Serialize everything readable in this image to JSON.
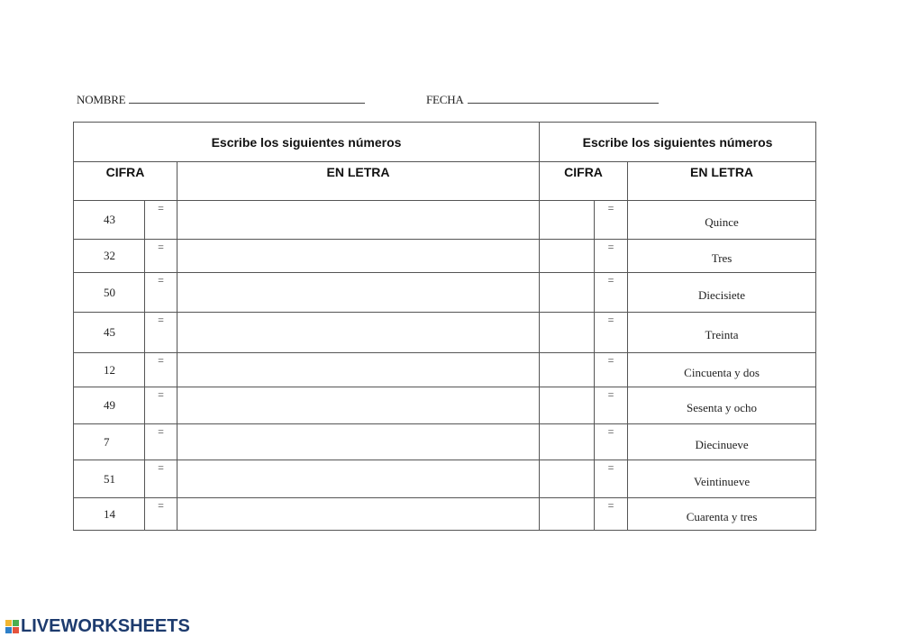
{
  "header": {
    "name_label": "NOMBRE",
    "date_label": "FECHA"
  },
  "left": {
    "title": "Escribe los siguientes números",
    "col_number": "CIFRA",
    "col_words": "EN LETRA",
    "rows": [
      {
        "n": "43"
      },
      {
        "n": "32"
      },
      {
        "n": "50"
      },
      {
        "n": "45"
      },
      {
        "n": "12"
      },
      {
        "n": "49"
      },
      {
        "n": "7"
      },
      {
        "n": "51"
      },
      {
        "n": "14"
      }
    ]
  },
  "right": {
    "title": "Escribe los siguientes números",
    "col_number": "CIFRA",
    "col_words": "EN LETRA",
    "rows": [
      {
        "w": "Quince"
      },
      {
        "w": "Tres"
      },
      {
        "w": "Diecisiete"
      },
      {
        "w": "Treinta"
      },
      {
        "w": "Cincuenta y dos"
      },
      {
        "w": "Sesenta y ocho"
      },
      {
        "w": "Diecinueve"
      },
      {
        "w": "Veintinueve"
      },
      {
        "w": "Cuarenta y tres"
      }
    ]
  },
  "equals": "=",
  "footer": {
    "logo": "LIVEWORKSHEETS"
  },
  "colors": {
    "logo": "#1d3b6e",
    "border": "#555555"
  }
}
